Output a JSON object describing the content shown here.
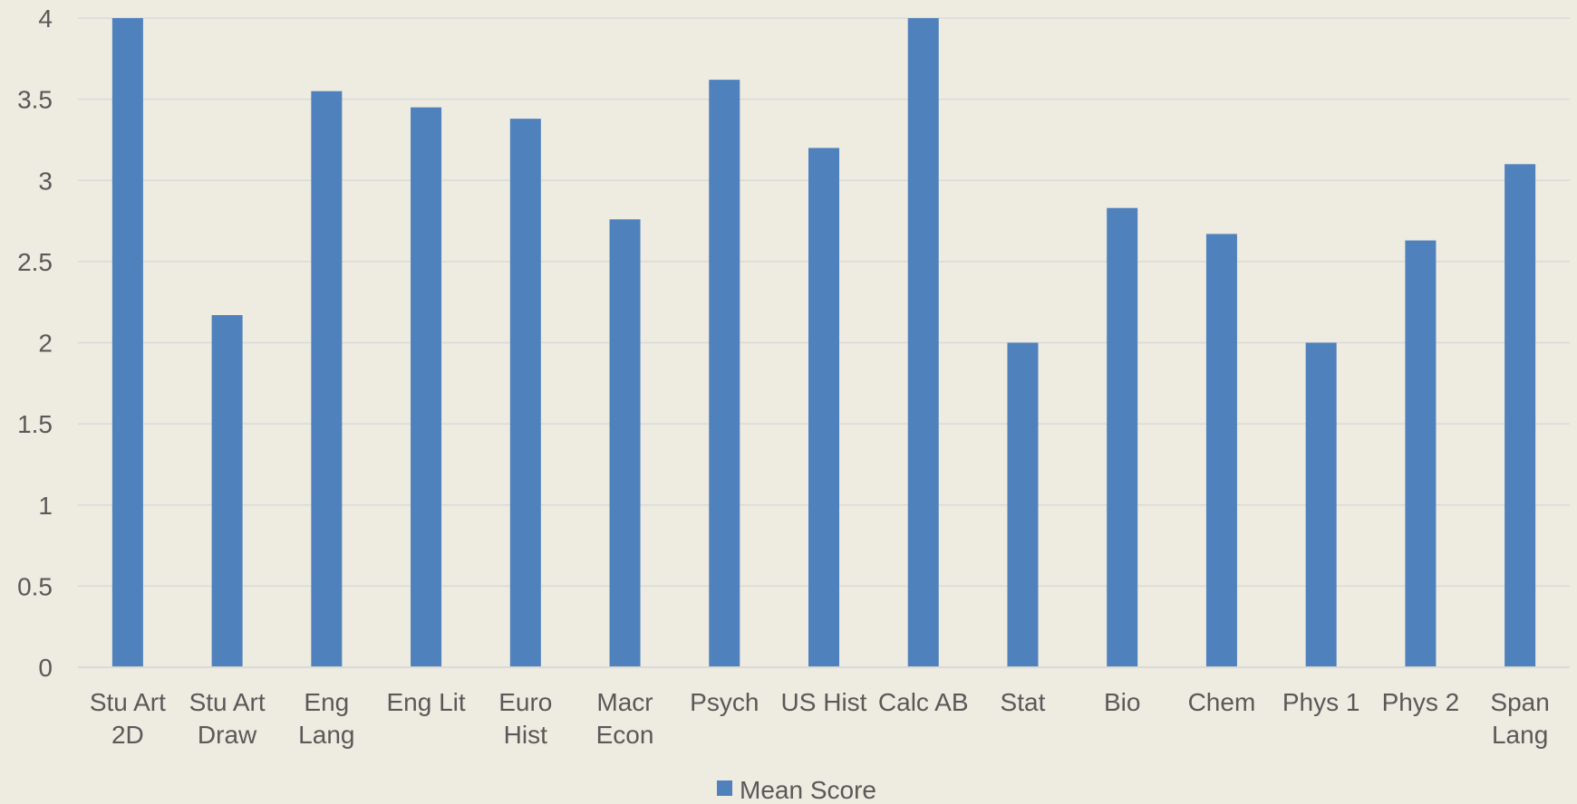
{
  "chart_data": {
    "type": "bar",
    "categories": [
      [
        "Stu Art",
        "2D"
      ],
      [
        "Stu Art",
        "Draw"
      ],
      [
        "Eng",
        "Lang"
      ],
      [
        "Eng Lit"
      ],
      [
        "Euro",
        "Hist"
      ],
      [
        "Macr",
        "Econ"
      ],
      [
        "Psych"
      ],
      [
        "US Hist"
      ],
      [
        "Calc AB"
      ],
      [
        "Stat"
      ],
      [
        "Bio"
      ],
      [
        "Chem"
      ],
      [
        "Phys 1"
      ],
      [
        "Phys 2"
      ],
      [
        "Span",
        "Lang"
      ]
    ],
    "series": [
      {
        "name": "Mean Score",
        "color": "#4F81BD",
        "values": [
          4.0,
          2.17,
          3.55,
          3.45,
          3.38,
          2.76,
          3.62,
          3.2,
          4.0,
          2.0,
          2.83,
          2.67,
          2.0,
          2.63,
          3.1
        ]
      }
    ],
    "ylim": [
      0,
      4
    ],
    "yticks": [
      "0",
      "0.5",
      "1",
      "1.5",
      "2",
      "2.5",
      "3",
      "3.5",
      "4"
    ],
    "grid": true,
    "legend": "bottom",
    "title": "",
    "xlabel": "",
    "ylabel": ""
  }
}
